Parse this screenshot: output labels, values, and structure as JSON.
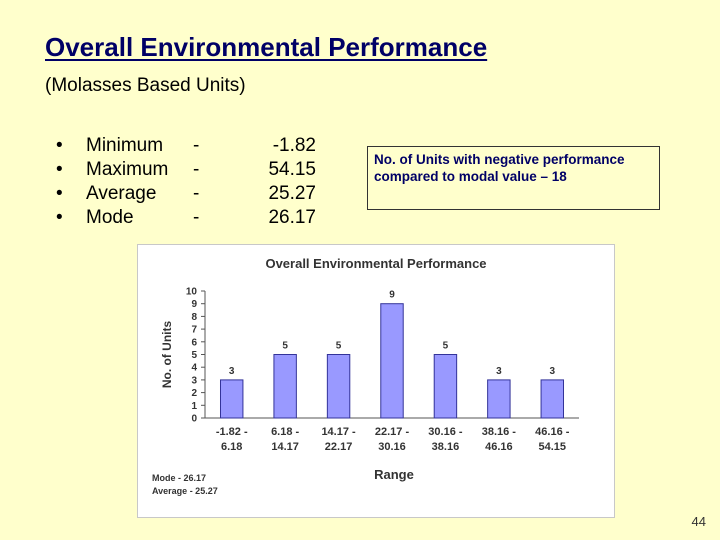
{
  "slide": {
    "title": "Overall Environmental Performance",
    "subtitle": "(Molasses Based Units)",
    "stats": [
      {
        "bullet": "•",
        "label": "Minimum",
        "dash": "-",
        "value": "-1.82"
      },
      {
        "bullet": "•",
        "label": "Maximum",
        "dash": "-",
        "value": "54.15"
      },
      {
        "bullet": "•",
        "label": "Average",
        "dash": "-",
        "value": "25.27"
      },
      {
        "bullet": "•",
        "label": "Mode",
        "dash": "-",
        "value": "26.17"
      }
    ],
    "callout": "No. of Units with negative performance compared to modal value – 18",
    "page_number": "44",
    "colors": {
      "background": "#FFFFCC",
      "title": "#000066",
      "bar": "#9999FF",
      "bar_border": "#333399"
    }
  },
  "chart_data": {
    "type": "bar",
    "title": "Overall Environmental Performance",
    "xlabel": "Range",
    "ylabel": "No. of Units",
    "ylim": [
      0,
      10
    ],
    "yticks": [
      0,
      1,
      2,
      3,
      4,
      5,
      6,
      7,
      8,
      9,
      10
    ],
    "categories": [
      [
        "-1.82 -",
        "6.18"
      ],
      [
        "6.18 -",
        "14.17"
      ],
      [
        "14.17 -",
        "22.17"
      ],
      [
        "22.17 -",
        "30.16"
      ],
      [
        "30.16 -",
        "38.16"
      ],
      [
        "38.16 -",
        "46.16"
      ],
      [
        "46.16 -",
        "54.15"
      ]
    ],
    "values": [
      3,
      5,
      5,
      9,
      5,
      3,
      3
    ],
    "data_labels": true,
    "grid": false,
    "legend": false,
    "annotations": [
      "Mode - 26.17",
      "Average - 25.27"
    ]
  }
}
